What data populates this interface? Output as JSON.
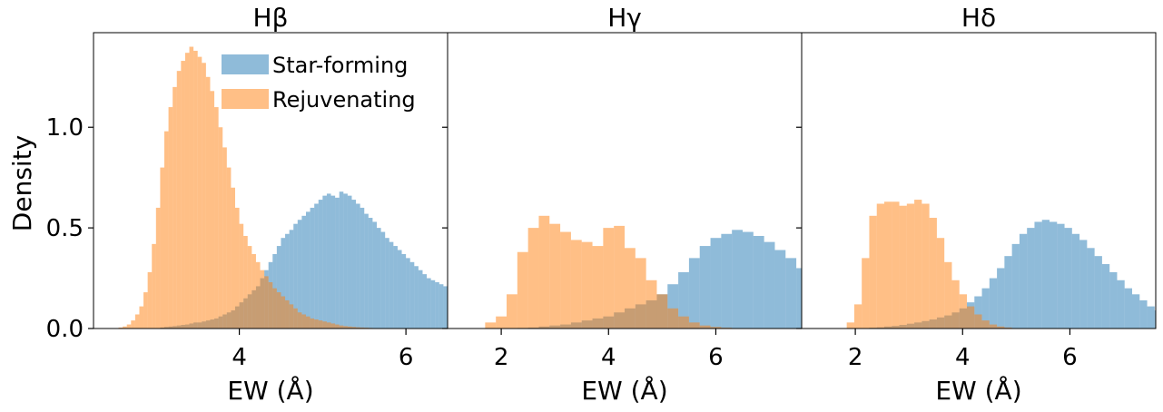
{
  "chart_data": {
    "type": "histogram",
    "ylabel": "Density",
    "ylim": [
      0,
      1.47
    ],
    "yticks": [
      {
        "value": 0.0,
        "label": "0.0"
      },
      {
        "value": 0.5,
        "label": "0.5"
      },
      {
        "value": 1.0,
        "label": "1.0"
      }
    ],
    "colors": {
      "star_forming": "#1f77b4",
      "rejuvenating": "#ff7f0e"
    },
    "bar_opacity": 0.5,
    "legend": {
      "placement": "top-right of first panel",
      "items": [
        {
          "label": "Star-forming",
          "color": "#1f77b4"
        },
        {
          "label": "Rejuvenating",
          "color": "#ff7f0e"
        }
      ]
    },
    "panels": [
      {
        "title": "Hβ",
        "xlabel": "EW (Å)",
        "xlim": [
          2.25,
          6.5
        ],
        "xticks": [
          {
            "value": 4,
            "label": "4"
          },
          {
            "value": 6,
            "label": "6"
          }
        ],
        "series": [
          {
            "name": "Star-forming",
            "key": "star_forming",
            "x_start": 2.5,
            "bin_width": 0.05,
            "values": [
              0.0,
              0.0,
              0.0,
              0.0,
              0.0,
              0.0,
              0.0,
              0.0,
              0.0,
              0.0,
              0.0,
              0.005,
              0.008,
              0.01,
              0.012,
              0.015,
              0.018,
              0.02,
              0.025,
              0.03,
              0.03,
              0.035,
              0.04,
              0.045,
              0.05,
              0.06,
              0.07,
              0.08,
              0.09,
              0.11,
              0.13,
              0.15,
              0.17,
              0.19,
              0.21,
              0.25,
              0.29,
              0.33,
              0.37,
              0.41,
              0.45,
              0.47,
              0.49,
              0.52,
              0.54,
              0.56,
              0.58,
              0.6,
              0.62,
              0.64,
              0.66,
              0.67,
              0.66,
              0.65,
              0.68,
              0.67,
              0.66,
              0.64,
              0.62,
              0.6,
              0.57,
              0.55,
              0.53,
              0.5,
              0.48,
              0.45,
              0.43,
              0.41,
              0.39,
              0.37,
              0.35,
              0.33,
              0.31,
              0.29,
              0.27,
              0.25,
              0.24,
              0.23,
              0.22,
              0.21,
              0.2,
              0.19,
              0.18,
              0.17,
              0.16,
              0.15,
              0.14,
              0.13,
              0.12,
              0.11,
              0.1,
              0.09,
              0.08,
              0.07,
              0.06,
              0.05,
              0.04,
              0.035,
              0.03,
              0.025
            ]
          },
          {
            "name": "Rejuvenating",
            "key": "rejuvenating",
            "x_start": 2.5,
            "bin_width": 0.05,
            "values": [
              0.0,
              0.005,
              0.01,
              0.02,
              0.04,
              0.07,
              0.11,
              0.18,
              0.28,
              0.42,
              0.6,
              0.8,
              0.98,
              1.1,
              1.2,
              1.28,
              1.33,
              1.37,
              1.4,
              1.38,
              1.35,
              1.32,
              1.25,
              1.18,
              1.1,
              1.0,
              0.9,
              0.8,
              0.7,
              0.6,
              0.52,
              0.46,
              0.41,
              0.37,
              0.33,
              0.29,
              0.26,
              0.23,
              0.2,
              0.18,
              0.16,
              0.14,
              0.12,
              0.1,
              0.08,
              0.07,
              0.06,
              0.05,
              0.045,
              0.04,
              0.035,
              0.03,
              0.025,
              0.02,
              0.015,
              0.012,
              0.01,
              0.008,
              0.006,
              0.005,
              0.004,
              0.003,
              0.002,
              0.001,
              0.001,
              0.0,
              0.0,
              0.0,
              0.0,
              0.0,
              0.0,
              0.0,
              0.0,
              0.0,
              0.0,
              0.0,
              0.0,
              0.0,
              0.0,
              0.0,
              0.0,
              0.0,
              0.0,
              0.0
            ]
          }
        ]
      },
      {
        "title": "Hγ",
        "xlabel": "EW (Å)",
        "xlim": [
          1.0,
          7.6
        ],
        "xticks": [
          {
            "value": 2,
            "label": "2"
          },
          {
            "value": 4,
            "label": "4"
          },
          {
            "value": 6,
            "label": "6"
          }
        ],
        "series": [
          {
            "name": "Star-forming",
            "key": "star_forming",
            "x_start": 1.5,
            "bin_width": 0.2,
            "values": [
              0.0,
              0.0,
              0.0,
              0.0,
              0.003,
              0.005,
              0.01,
              0.015,
              0.02,
              0.03,
              0.04,
              0.05,
              0.06,
              0.08,
              0.1,
              0.12,
              0.14,
              0.17,
              0.22,
              0.28,
              0.35,
              0.41,
              0.45,
              0.47,
              0.49,
              0.48,
              0.46,
              0.43,
              0.39,
              0.35,
              0.3,
              0.25,
              0.2,
              0.16,
              0.12,
              0.09,
              0.06,
              0.04,
              0.02,
              0.01
            ]
          },
          {
            "name": "Rejuvenating",
            "key": "rejuvenating",
            "x_start": 1.5,
            "bin_width": 0.2,
            "values": [
              0.0,
              0.03,
              0.06,
              0.17,
              0.38,
              0.5,
              0.56,
              0.52,
              0.48,
              0.44,
              0.43,
              0.41,
              0.5,
              0.51,
              0.4,
              0.35,
              0.24,
              0.17,
              0.1,
              0.06,
              0.03,
              0.015,
              0.008,
              0.004,
              0.002,
              0.001,
              0.0,
              0.0,
              0.0,
              0.0,
              0.0,
              0.0,
              0.0,
              0.0,
              0.0,
              0.0,
              0.0,
              0.0,
              0.0,
              0.0
            ]
          }
        ]
      },
      {
        "title": "Hδ",
        "xlabel": "EW (Å)",
        "xlim": [
          1.0,
          7.6
        ],
        "xticks": [
          {
            "value": 2,
            "label": "2"
          },
          {
            "value": 4,
            "label": "4"
          },
          {
            "value": 6,
            "label": "6"
          }
        ],
        "series": [
          {
            "name": "Star-forming",
            "key": "star_forming",
            "x_start": 1.7,
            "bin_width": 0.14,
            "values": [
              0.0,
              0.0,
              0.0,
              0.002,
              0.004,
              0.006,
              0.01,
              0.013,
              0.018,
              0.024,
              0.03,
              0.037,
              0.045,
              0.055,
              0.065,
              0.08,
              0.1,
              0.13,
              0.16,
              0.2,
              0.25,
              0.3,
              0.36,
              0.42,
              0.47,
              0.5,
              0.53,
              0.54,
              0.53,
              0.52,
              0.5,
              0.47,
              0.44,
              0.4,
              0.36,
              0.32,
              0.28,
              0.24,
              0.2,
              0.17,
              0.14,
              0.11,
              0.09,
              0.07,
              0.05,
              0.04,
              0.03,
              0.02,
              0.015,
              0.012
            ]
          },
          {
            "name": "Rejuvenating",
            "key": "rejuvenating",
            "x_start": 1.7,
            "bin_width": 0.14,
            "values": [
              0.0,
              0.03,
              0.12,
              0.35,
              0.56,
              0.62,
              0.63,
              0.63,
              0.61,
              0.62,
              0.64,
              0.62,
              0.55,
              0.45,
              0.33,
              0.24,
              0.17,
              0.11,
              0.07,
              0.04,
              0.02,
              0.01,
              0.005,
              0.002,
              0.001,
              0.0,
              0.0,
              0.0,
              0.0,
              0.0,
              0.0,
              0.0,
              0.0,
              0.0,
              0.0,
              0.0,
              0.0,
              0.0,
              0.0,
              0.0,
              0.0,
              0.0,
              0.0,
              0.0,
              0.0,
              0.0,
              0.0,
              0.0,
              0.0,
              0.0
            ]
          }
        ]
      }
    ]
  }
}
